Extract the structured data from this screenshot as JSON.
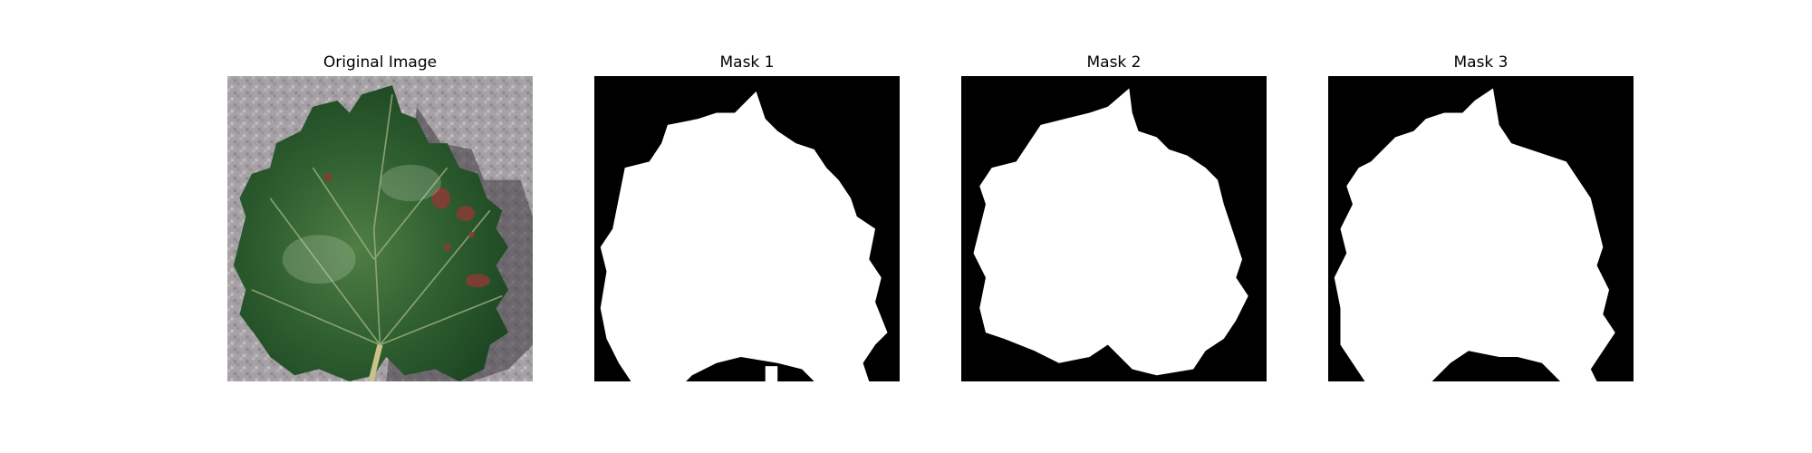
{
  "panels": [
    {
      "title": "Original Image"
    },
    {
      "title": "Mask 1"
    },
    {
      "title": "Mask 2"
    },
    {
      "title": "Mask 3"
    }
  ],
  "colors": {
    "figure_background": "#ffffff",
    "mask_background": "#000000",
    "mask_foreground": "#ffffff",
    "leaf_dark": "#1f4a24",
    "leaf_mid": "#3a6e36",
    "leaf_light": "#5f8a4e",
    "surface_gray": "#a6a1a5",
    "lesion": "#8a3b35"
  }
}
